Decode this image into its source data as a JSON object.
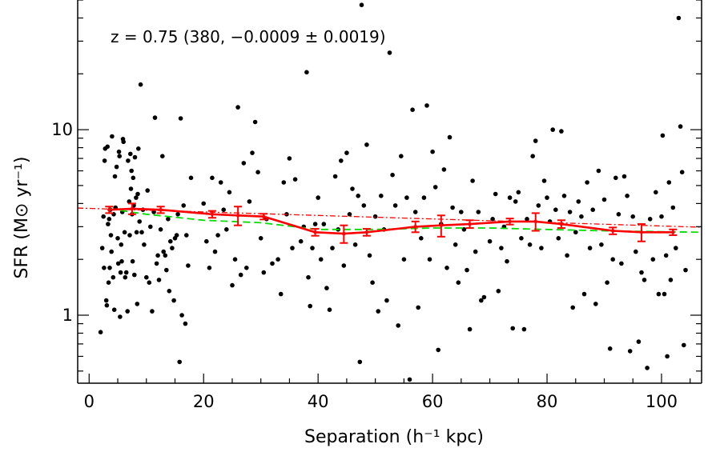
{
  "chart_data": {
    "type": "scatter",
    "annotation": "z = 0.75 (380,  −0.0009 ± 0.0019)",
    "xlabel": "Separation (h⁻¹ kpc)",
    "ylabel": "SFR (M⊙ yr⁻¹)",
    "xlim": [
      -2,
      107
    ],
    "ylim": [
      0.43,
      50
    ],
    "yscale": "log",
    "x_ticks": [
      0,
      20,
      40,
      60,
      80,
      100
    ],
    "y_ticks": [
      {
        "value": 1,
        "label": "1"
      },
      {
        "value": 10,
        "label": "10"
      }
    ],
    "colors": {
      "points": "#000000",
      "binned": "#ff0000",
      "fit": "#ff0000",
      "model": "#00dd00"
    },
    "points": [
      [
        2.0,
        0.81
      ],
      [
        2.3,
        2.3
      ],
      [
        2.5,
        3.4
      ],
      [
        2.6,
        1.8
      ],
      [
        2.7,
        6.8
      ],
      [
        2.8,
        7.9
      ],
      [
        3.0,
        1.2
      ],
      [
        3.1,
        1.13
      ],
      [
        3.2,
        8.1
      ],
      [
        3.3,
        3.1
      ],
      [
        3.4,
        1.5
      ],
      [
        3.5,
        3.3
      ],
      [
        3.6,
        1.8
      ],
      [
        3.7,
        3.7
      ],
      [
        3.8,
        2.7
      ],
      [
        3.9,
        2.2
      ],
      [
        4.0,
        9.2
      ],
      [
        4.2,
        1.6
      ],
      [
        4.3,
        3.5
      ],
      [
        4.4,
        1.07
      ],
      [
        4.5,
        5.6
      ],
      [
        4.6,
        3.8
      ],
      [
        4.8,
        6.3
      ],
      [
        5.0,
        2.6
      ],
      [
        5.1,
        1.9
      ],
      [
        5.2,
        7.6
      ],
      [
        5.3,
        7.2
      ],
      [
        5.4,
        0.98
      ],
      [
        5.5,
        1.7
      ],
      [
        5.6,
        2.4
      ],
      [
        5.7,
        1.95
      ],
      [
        5.8,
        3.6
      ],
      [
        5.9,
        8.9
      ],
      [
        6.0,
        8.6
      ],
      [
        6.2,
        2.8
      ],
      [
        6.3,
        1.6
      ],
      [
        6.5,
        1.7
      ],
      [
        6.7,
        1.05
      ],
      [
        6.8,
        6.8
      ],
      [
        7.0,
        4.1
      ],
      [
        7.1,
        2.7
      ],
      [
        7.2,
        7.4
      ],
      [
        7.3,
        4.8
      ],
      [
        7.4,
        6.0
      ],
      [
        7.5,
        3.5
      ],
      [
        7.6,
        1.95
      ],
      [
        7.7,
        5.5
      ],
      [
        7.8,
        3.9
      ],
      [
        7.9,
        1.65
      ],
      [
        8.0,
        7.1
      ],
      [
        8.2,
        4.3
      ],
      [
        8.3,
        2.8
      ],
      [
        8.4,
        1.15
      ],
      [
        8.5,
        4.5
      ],
      [
        8.6,
        7.9
      ],
      [
        8.8,
        3.2
      ],
      [
        9.0,
        17.5
      ],
      [
        9.2,
        2.8
      ],
      [
        9.4,
        3.7
      ],
      [
        9.6,
        2.4
      ],
      [
        10.0,
        1.6
      ],
      [
        10.2,
        4.7
      ],
      [
        10.5,
        1.5
      ],
      [
        10.7,
        3.0
      ],
      [
        11.0,
        1.05
      ],
      [
        11.3,
        3.6
      ],
      [
        11.5,
        11.6
      ],
      [
        11.8,
        1.9
      ],
      [
        12.0,
        2.1
      ],
      [
        12.2,
        1.55
      ],
      [
        12.5,
        2.9
      ],
      [
        12.8,
        7.2
      ],
      [
        13.0,
        2.2
      ],
      [
        13.3,
        2.1
      ],
      [
        13.5,
        1.75
      ],
      [
        13.8,
        3.3
      ],
      [
        14.0,
        1.35
      ],
      [
        14.2,
        2.5
      ],
      [
        14.5,
        2.3
      ],
      [
        14.8,
        1.2
      ],
      [
        15.0,
        2.6
      ],
      [
        15.3,
        2.7
      ],
      [
        15.5,
        3.5
      ],
      [
        15.8,
        0.56
      ],
      [
        16.0,
        11.5
      ],
      [
        16.2,
        1.0
      ],
      [
        16.5,
        3.9
      ],
      [
        16.8,
        0.9
      ],
      [
        17.0,
        2.7
      ],
      [
        17.3,
        1.85
      ],
      [
        17.8,
        5.5
      ],
      [
        20.0,
        4.0
      ],
      [
        20.5,
        2.5
      ],
      [
        21.0,
        1.8
      ],
      [
        21.5,
        5.5
      ],
      [
        22.0,
        2.2
      ],
      [
        22.5,
        2.7
      ],
      [
        23.0,
        5.2
      ],
      [
        23.5,
        3.7
      ],
      [
        24.0,
        2.9
      ],
      [
        24.5,
        4.6
      ],
      [
        25.0,
        1.45
      ],
      [
        25.5,
        2.0
      ],
      [
        26.0,
        13.2
      ],
      [
        26.5,
        1.65
      ],
      [
        27.0,
        6.6
      ],
      [
        27.5,
        1.8
      ],
      [
        28.0,
        4.1
      ],
      [
        28.5,
        7.5
      ],
      [
        29.0,
        11.0
      ],
      [
        29.5,
        5.9
      ],
      [
        30.0,
        2.6
      ],
      [
        30.5,
        1.7
      ],
      [
        31.0,
        3.3
      ],
      [
        32.0,
        1.9
      ],
      [
        33.0,
        2.0
      ],
      [
        33.5,
        1.3
      ],
      [
        34.0,
        5.2
      ],
      [
        34.5,
        3.5
      ],
      [
        35.0,
        7.0
      ],
      [
        35.5,
        2.3
      ],
      [
        36.0,
        5.4
      ],
      [
        37.0,
        2.5
      ],
      [
        37.5,
        3.0
      ],
      [
        38.0,
        20.4
      ],
      [
        38.3,
        1.6
      ],
      [
        38.6,
        1.12
      ],
      [
        39.0,
        2.3
      ],
      [
        39.5,
        3.1
      ],
      [
        40.0,
        4.3
      ],
      [
        40.5,
        2.0
      ],
      [
        41.0,
        3.1
      ],
      [
        41.5,
        1.4
      ],
      [
        42.0,
        1.07
      ],
      [
        42.5,
        2.3
      ],
      [
        43.0,
        5.6
      ],
      [
        43.5,
        2.9
      ],
      [
        44.0,
        6.8
      ],
      [
        44.5,
        1.85
      ],
      [
        45.0,
        7.5
      ],
      [
        45.5,
        3.5
      ],
      [
        46.0,
        4.8
      ],
      [
        46.5,
        2.4
      ],
      [
        47.0,
        4.4
      ],
      [
        47.3,
        0.56
      ],
      [
        47.6,
        47.0
      ],
      [
        48.0,
        3.9
      ],
      [
        48.5,
        8.3
      ],
      [
        49.0,
        2.1
      ],
      [
        49.5,
        1.5
      ],
      [
        50.0,
        3.4
      ],
      [
        50.5,
        1.05
      ],
      [
        51.0,
        4.4
      ],
      [
        51.5,
        2.9
      ],
      [
        52.0,
        1.2
      ],
      [
        52.5,
        26.0
      ],
      [
        53.0,
        5.7
      ],
      [
        53.5,
        3.9
      ],
      [
        54.0,
        0.88
      ],
      [
        54.5,
        7.2
      ],
      [
        55.0,
        2.0
      ],
      [
        55.5,
        4.3
      ],
      [
        56.0,
        0.45
      ],
      [
        56.5,
        12.8
      ],
      [
        57.0,
        3.6
      ],
      [
        57.5,
        1.1
      ],
      [
        58.0,
        2.6
      ],
      [
        58.5,
        4.3
      ],
      [
        59.0,
        13.5
      ],
      [
        59.5,
        2.0
      ],
      [
        60.0,
        7.6
      ],
      [
        60.5,
        4.9
      ],
      [
        61.0,
        0.65
      ],
      [
        61.5,
        3.1
      ],
      [
        62.0,
        6.1
      ],
      [
        62.5,
        1.8
      ],
      [
        63.0,
        9.1
      ],
      [
        63.5,
        3.8
      ],
      [
        64.0,
        2.4
      ],
      [
        64.5,
        1.5
      ],
      [
        65.0,
        3.6
      ],
      [
        65.5,
        2.9
      ],
      [
        66.0,
        1.75
      ],
      [
        66.5,
        0.84
      ],
      [
        67.0,
        5.3
      ],
      [
        67.5,
        2.2
      ],
      [
        68.0,
        3.6
      ],
      [
        68.5,
        1.2
      ],
      [
        69.0,
        1.25
      ],
      [
        70.0,
        2.5
      ],
      [
        70.5,
        3.3
      ],
      [
        71.0,
        4.5
      ],
      [
        71.5,
        1.35
      ],
      [
        72.0,
        2.3
      ],
      [
        72.5,
        3.0
      ],
      [
        73.0,
        1.95
      ],
      [
        73.5,
        4.3
      ],
      [
        74.0,
        0.85
      ],
      [
        74.5,
        4.1
      ],
      [
        75.0,
        4.6
      ],
      [
        75.5,
        2.6
      ],
      [
        76.0,
        0.84
      ],
      [
        76.5,
        3.3
      ],
      [
        77.0,
        2.4
      ],
      [
        77.5,
        7.2
      ],
      [
        78.0,
        8.7
      ],
      [
        78.5,
        3.9
      ],
      [
        79.0,
        2.3
      ],
      [
        79.5,
        5.3
      ],
      [
        80.0,
        4.3
      ],
      [
        80.5,
        3.2
      ],
      [
        81.0,
        10.0
      ],
      [
        81.5,
        3.7
      ],
      [
        82.0,
        2.6
      ],
      [
        82.5,
        9.8
      ],
      [
        83.0,
        4.4
      ],
      [
        83.5,
        2.1
      ],
      [
        84.0,
        3.6
      ],
      [
        84.5,
        1.1
      ],
      [
        85.0,
        2.8
      ],
      [
        85.5,
        4.1
      ],
      [
        86.0,
        3.4
      ],
      [
        86.5,
        1.3
      ],
      [
        87.0,
        5.2
      ],
      [
        87.5,
        2.3
      ],
      [
        88.0,
        3.7
      ],
      [
        88.5,
        1.15
      ],
      [
        89.0,
        6.0
      ],
      [
        89.5,
        2.4
      ],
      [
        90.0,
        4.2
      ],
      [
        90.5,
        1.5
      ],
      [
        91.0,
        0.66
      ],
      [
        91.5,
        2.0
      ],
      [
        92.0,
        5.5
      ],
      [
        92.5,
        3.5
      ],
      [
        93.0,
        1.9
      ],
      [
        93.5,
        5.6
      ],
      [
        94.0,
        4.4
      ],
      [
        94.5,
        0.64
      ],
      [
        95.0,
        3.4
      ],
      [
        95.5,
        2.2
      ],
      [
        96.0,
        0.72
      ],
      [
        96.5,
        1.7
      ],
      [
        97.0,
        1.55
      ],
      [
        97.5,
        0.52
      ],
      [
        98.0,
        3.3
      ],
      [
        98.5,
        2.0
      ],
      [
        99.0,
        4.6
      ],
      [
        99.5,
        1.3
      ],
      [
        100.0,
        3.4
      ],
      [
        100.2,
        9.3
      ],
      [
        100.5,
        1.3
      ],
      [
        100.8,
        2.1
      ],
      [
        101.0,
        0.6
      ],
      [
        101.3,
        5.2
      ],
      [
        101.6,
        1.55
      ],
      [
        102.0,
        3.8
      ],
      [
        102.5,
        2.3
      ],
      [
        103.0,
        40.0
      ],
      [
        103.3,
        10.4
      ],
      [
        103.6,
        5.9
      ],
      [
        103.9,
        0.69
      ],
      [
        104.2,
        1.75
      ]
    ],
    "binned": {
      "x": [
        3.5,
        7.5,
        12.5,
        21.5,
        26.0,
        30.5,
        39.5,
        44.5,
        48.5,
        57.0,
        61.5,
        66.5,
        73.5,
        78.0,
        82.5,
        91.5,
        96.5,
        102.0
      ],
      "y": [
        3.7,
        3.75,
        3.7,
        3.5,
        3.45,
        3.4,
        2.8,
        2.75,
        2.8,
        3.0,
        3.05,
        3.1,
        3.2,
        3.2,
        3.1,
        2.85,
        2.8,
        2.8
      ],
      "err": [
        0.15,
        0.25,
        0.15,
        0.15,
        0.4,
        0.12,
        0.12,
        0.3,
        0.12,
        0.2,
        0.4,
        0.15,
        0.12,
        0.35,
        0.15,
        0.12,
        0.3,
        0.1
      ]
    },
    "fit_line": {
      "x": [
        -2,
        107
      ],
      "y": [
        3.78,
        2.98
      ]
    },
    "model_curve": {
      "x": [
        3.5,
        10,
        20,
        30,
        40,
        50,
        60,
        70,
        80,
        90,
        100,
        107
      ],
      "y": [
        3.75,
        3.5,
        3.25,
        3.15,
        2.9,
        2.9,
        2.95,
        2.95,
        2.9,
        2.85,
        2.82,
        2.8
      ]
    }
  }
}
